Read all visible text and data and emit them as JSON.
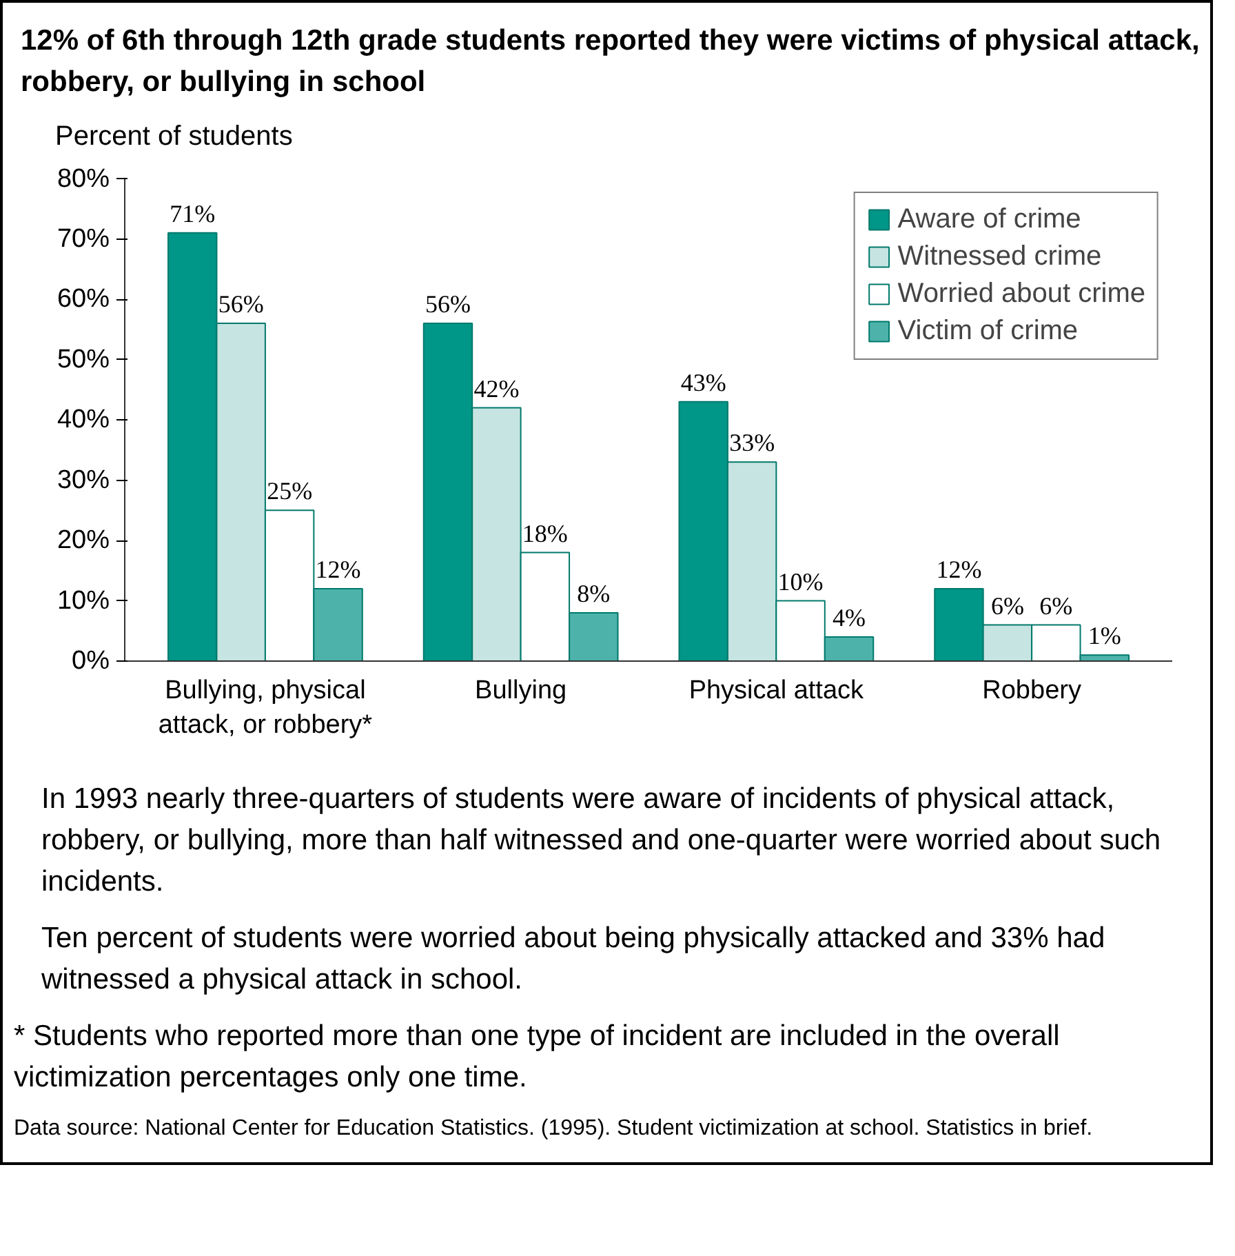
{
  "chart_data": {
    "type": "bar",
    "title": "12% of 6th through 12th grade students reported they were victims of physical attack, robbery, or bullying in school",
    "ylabel": "Percent of students",
    "categories": [
      "Bullying, physical attack, or robbery*",
      "Bullying",
      "Physical attack",
      "Robbery"
    ],
    "series": [
      {
        "name": "Aware of crime",
        "color": "#009688",
        "values": [
          71,
          56,
          43,
          12
        ],
        "value_labels": [
          "71%",
          "56%",
          "43%",
          "12%"
        ]
      },
      {
        "name": "Witnessed crime",
        "color": "#c6e4e1",
        "values": [
          56,
          42,
          33,
          6
        ],
        "value_labels": [
          "56%",
          "42%",
          "33%",
          "6%"
        ]
      },
      {
        "name": "Worried about crime",
        "color": "#ffffff",
        "values": [
          25,
          18,
          10,
          6
        ],
        "value_labels": [
          "25%",
          "18%",
          "10%",
          "6%"
        ]
      },
      {
        "name": "Victim of crime",
        "color": "#4db3aa",
        "values": [
          12,
          8,
          4,
          1
        ],
        "value_labels": [
          "12%",
          "8%",
          "4%",
          "1%"
        ]
      }
    ],
    "ylim": [
      0,
      80
    ],
    "yticks": [
      {
        "value": 0,
        "label": "0%"
      },
      {
        "value": 10,
        "label": "10%"
      },
      {
        "value": 20,
        "label": "20%"
      },
      {
        "value": 30,
        "label": "30%"
      },
      {
        "value": 40,
        "label": "40%"
      },
      {
        "value": 50,
        "label": "50%"
      },
      {
        "value": 60,
        "label": "60%"
      },
      {
        "value": 70,
        "label": "70%"
      },
      {
        "value": 80,
        "label": "80%"
      }
    ],
    "grid": false,
    "legend": "top right",
    "annotations": [
      "In 1993 nearly three-quarters of students were aware of incidents of physical attack, robbery, or bullying, more than half witnessed and one-quarter were worried about such incidents.",
      "Ten percent of students were worried about being physically attacked and 33% had witnessed a physical attack in school.",
      "* Students who reported more than one type of incident are included in the overall victimization percentages only one time.",
      "Data source: National Center for Education Statistics. (1995). Student victimization at school. Statistics in brief."
    ]
  }
}
